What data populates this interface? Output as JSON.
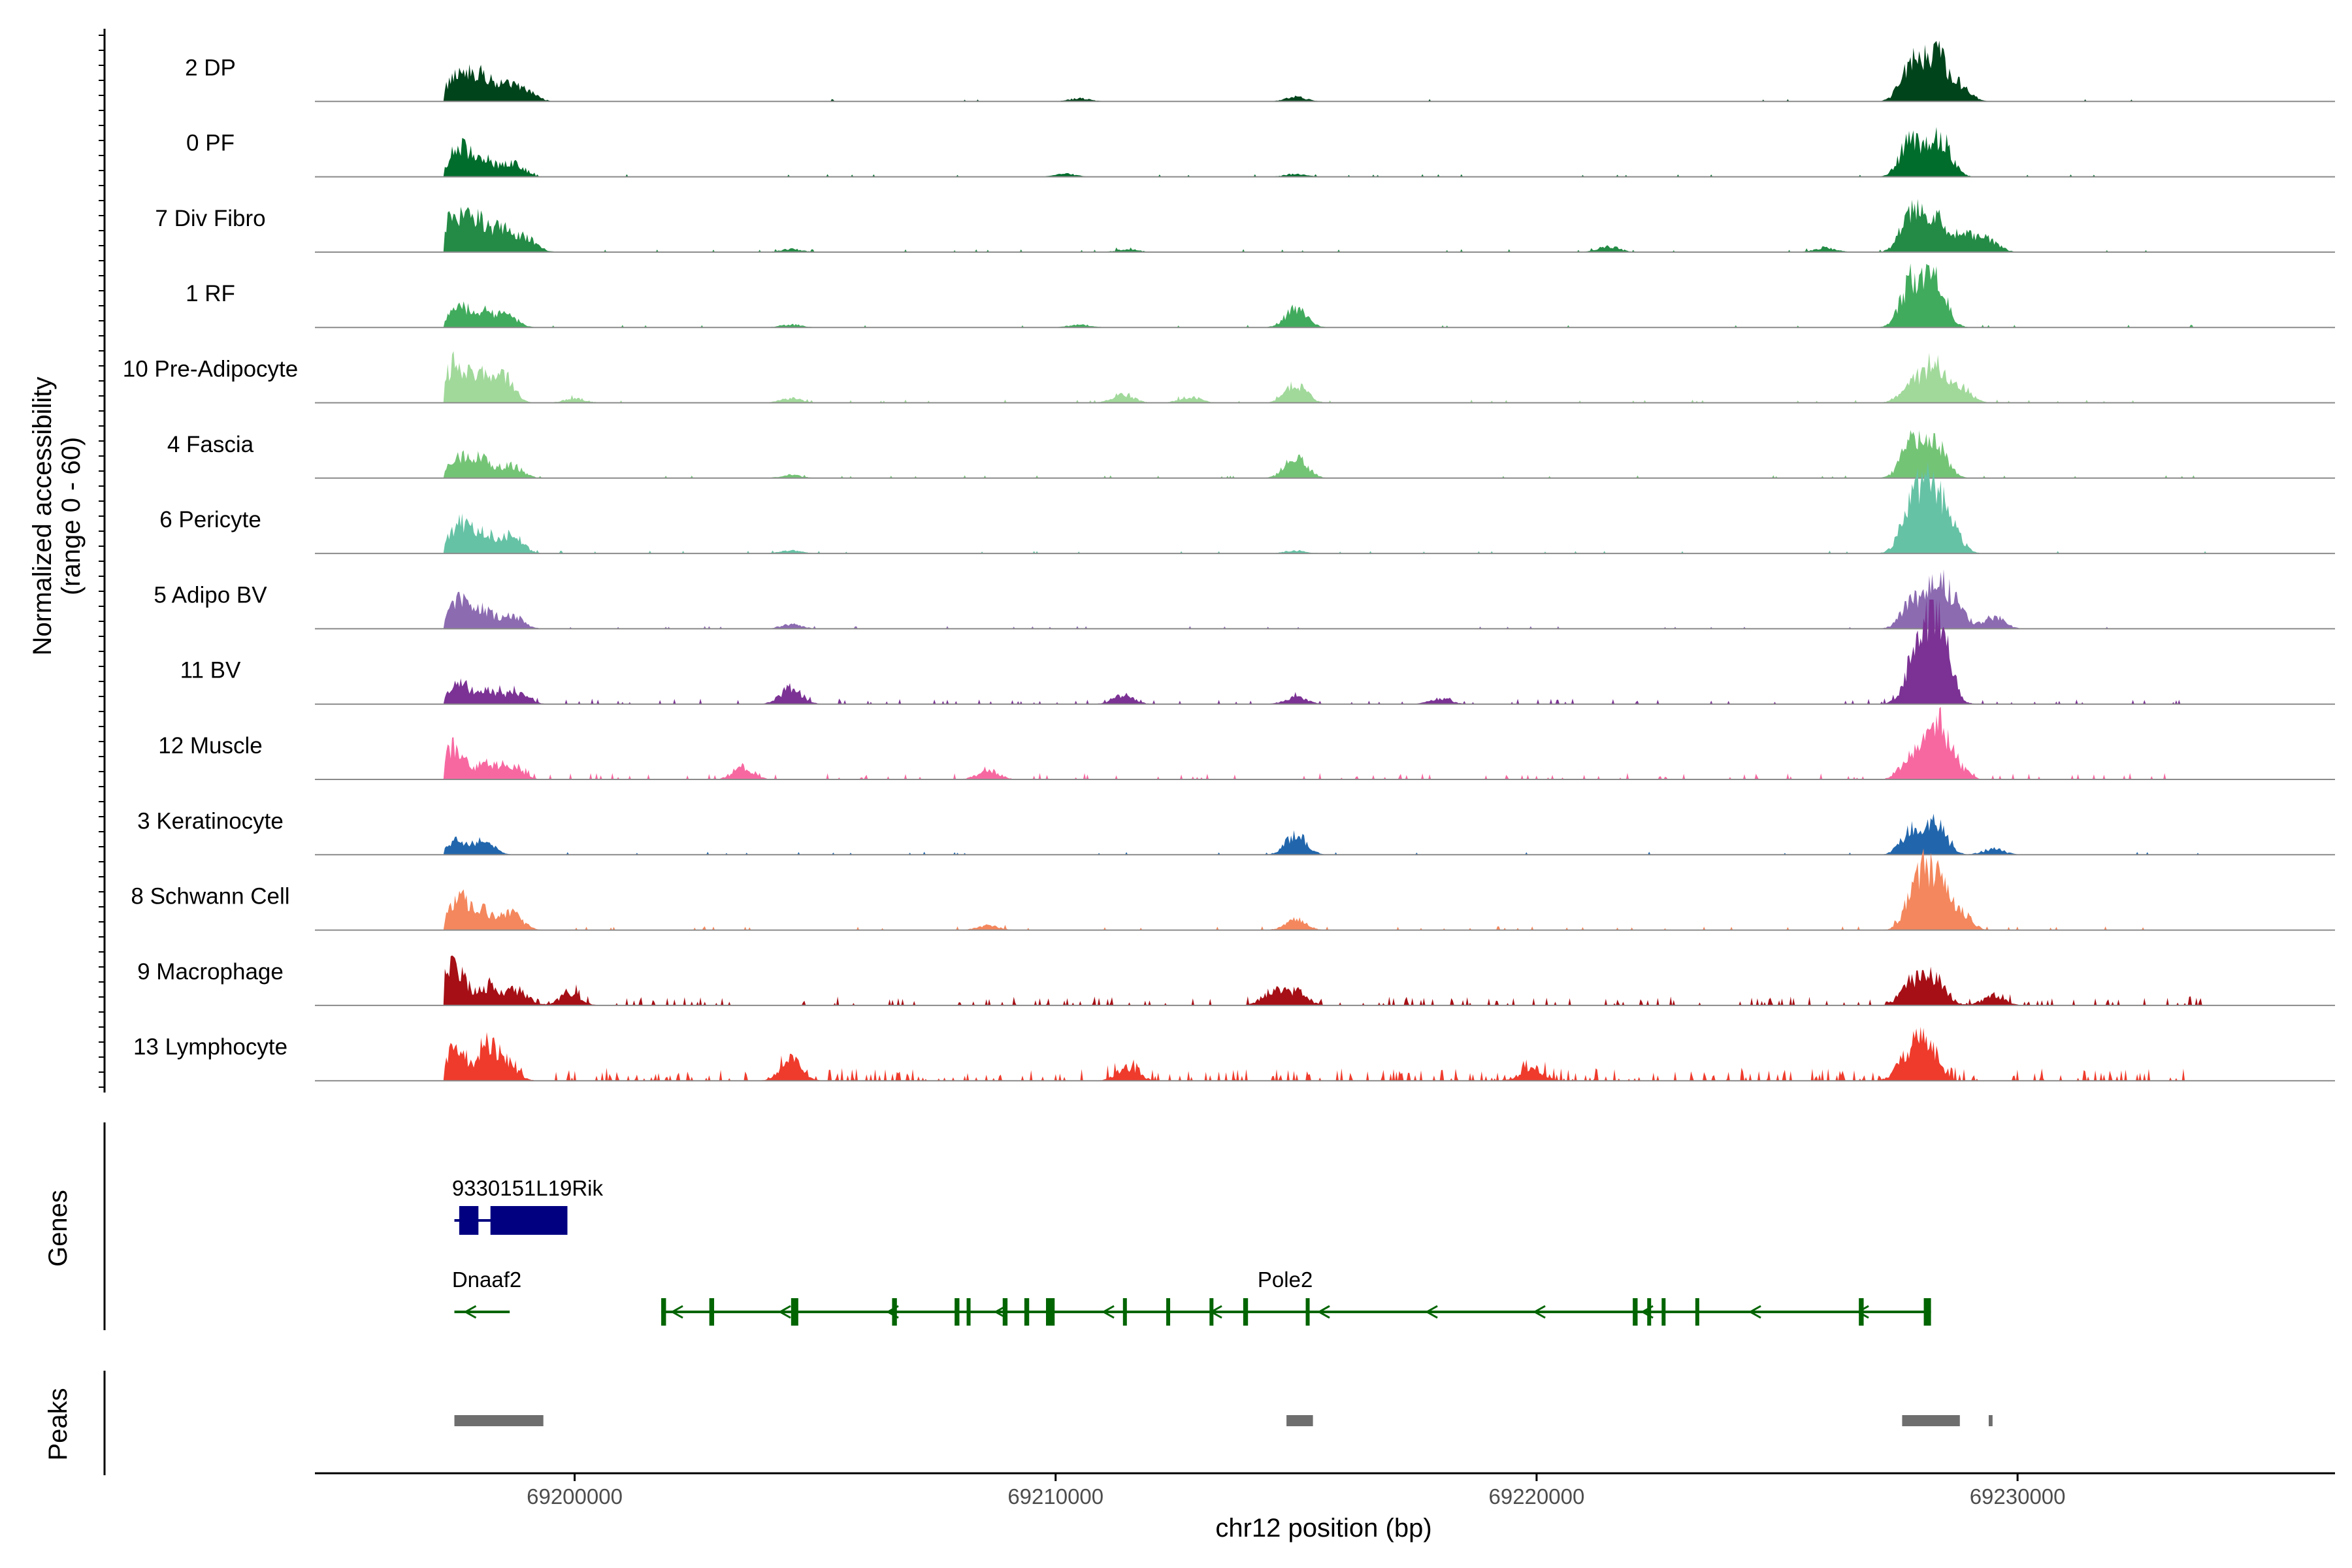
{
  "chart_data": {
    "type": "area",
    "title": "",
    "xlabel": "chr12 position (bp)",
    "ylabel_line1": "Normalized accessibility",
    "ylabel_line2": "(range 0 - 60)",
    "y_range": [
      0,
      60
    ],
    "x_range": [
      69194600,
      69236600
    ],
    "x_ticks": [
      69200000,
      69210000,
      69220000,
      69230000
    ],
    "x_tick_labels": [
      "69200000",
      "69210000",
      "69220000",
      "69230000"
    ],
    "tracks": [
      {
        "name": "2 DP",
        "color": "#00441b",
        "noise": 0.04,
        "peaks": [
          [
            69197600,
            21
          ],
          [
            69198100,
            16
          ],
          [
            69198600,
            9
          ],
          [
            69199000,
            6
          ],
          [
            69227800,
            26
          ],
          [
            69228300,
            30
          ],
          [
            69228800,
            10
          ],
          [
            69215000,
            3
          ],
          [
            69210500,
            2
          ]
        ]
      },
      {
        "name": "0 PF",
        "color": "#006d2c",
        "noise": 0.05,
        "peaks": [
          [
            69197600,
            19
          ],
          [
            69198100,
            12
          ],
          [
            69198700,
            9
          ],
          [
            69227800,
            27
          ],
          [
            69228400,
            25
          ],
          [
            69210200,
            2
          ],
          [
            69215000,
            2
          ]
        ]
      },
      {
        "name": "7 Div Fibro",
        "color": "#238b45",
        "noise": 0.07,
        "peaks": [
          [
            69197500,
            24
          ],
          [
            69198000,
            20
          ],
          [
            69198500,
            14
          ],
          [
            69199000,
            9
          ],
          [
            69227800,
            26
          ],
          [
            69228300,
            21
          ],
          [
            69228900,
            12
          ],
          [
            69229400,
            8
          ],
          [
            69204500,
            2
          ],
          [
            69211500,
            2
          ],
          [
            69221500,
            4
          ],
          [
            69226000,
            3
          ]
        ]
      },
      {
        "name": "1 RF",
        "color": "#41ab5d",
        "noise": 0.06,
        "peaks": [
          [
            69197600,
            13
          ],
          [
            69198100,
            10
          ],
          [
            69198600,
            8
          ],
          [
            69227800,
            31
          ],
          [
            69228300,
            30
          ],
          [
            69215000,
            13
          ],
          [
            69210500,
            2
          ],
          [
            69204500,
            2
          ]
        ]
      },
      {
        "name": "10 Pre-Adipocyte",
        "color": "#a1d99b",
        "noise": 0.1,
        "peaks": [
          [
            69197500,
            25
          ],
          [
            69198000,
            16
          ],
          [
            69198500,
            18
          ],
          [
            69227800,
            14
          ],
          [
            69228300,
            26
          ],
          [
            69228800,
            11
          ],
          [
            69215000,
            12
          ],
          [
            69211400,
            6
          ],
          [
            69200000,
            3
          ],
          [
            69204500,
            3
          ],
          [
            69212800,
            4
          ]
        ]
      },
      {
        "name": "4 Fascia",
        "color": "#74c476",
        "noise": 0.06,
        "peaks": [
          [
            69197600,
            14
          ],
          [
            69198100,
            12
          ],
          [
            69198700,
            8
          ],
          [
            69227800,
            23
          ],
          [
            69228300,
            24
          ],
          [
            69215000,
            15
          ],
          [
            69204500,
            2
          ]
        ]
      },
      {
        "name": "6 Pericyte",
        "color": "#66c2a5",
        "noise": 0.06,
        "peaks": [
          [
            69197600,
            20
          ],
          [
            69198100,
            14
          ],
          [
            69198700,
            12
          ],
          [
            69227800,
            30
          ],
          [
            69228200,
            41
          ],
          [
            69228600,
            18
          ],
          [
            69204500,
            2
          ],
          [
            69215000,
            2
          ]
        ]
      },
      {
        "name": "5 Adipo BV",
        "color": "#8c6bb1",
        "noise": 0.06,
        "peaks": [
          [
            69197600,
            19
          ],
          [
            69198100,
            12
          ],
          [
            69198700,
            9
          ],
          [
            69227800,
            17
          ],
          [
            69228300,
            28
          ],
          [
            69228700,
            15
          ],
          [
            69229500,
            8
          ],
          [
            69204500,
            3
          ]
        ]
      },
      {
        "name": "11 BV",
        "color": "#7b3294",
        "noise": 0.22,
        "peaks": [
          [
            69197600,
            14
          ],
          [
            69198200,
            9
          ],
          [
            69198800,
            8
          ],
          [
            69204500,
            11
          ],
          [
            69227800,
            14
          ],
          [
            69228100,
            40
          ],
          [
            69228400,
            39
          ],
          [
            69215000,
            5
          ],
          [
            69211400,
            6
          ],
          [
            69218000,
            4
          ]
        ]
      },
      {
        "name": "12 Muscle",
        "color": "#f768a1",
        "noise": 0.28,
        "peaks": [
          [
            69197500,
            22
          ],
          [
            69198200,
            10
          ],
          [
            69198700,
            8
          ],
          [
            69227800,
            15
          ],
          [
            69228300,
            35
          ],
          [
            69228700,
            10
          ],
          [
            69203500,
            7
          ],
          [
            69208600,
            6
          ]
        ]
      },
      {
        "name": "3 Keratinocyte",
        "color": "#2166ac",
        "noise": 0.08,
        "peaks": [
          [
            69197500,
            9
          ],
          [
            69198100,
            9
          ],
          [
            69227800,
            16
          ],
          [
            69228300,
            20
          ],
          [
            69215000,
            13
          ],
          [
            69229500,
            4
          ]
        ]
      },
      {
        "name": "8 Schwann Cell",
        "color": "#f4875d",
        "noise": 0.12,
        "peaks": [
          [
            69197600,
            20
          ],
          [
            69198100,
            12
          ],
          [
            69198700,
            11
          ],
          [
            69227900,
            30
          ],
          [
            69228300,
            34
          ],
          [
            69228800,
            12
          ],
          [
            69215000,
            7
          ],
          [
            69208600,
            3
          ]
        ]
      },
      {
        "name": "9 Macrophage",
        "color": "#a50f15",
        "noise": 0.42,
        "peaks": [
          [
            69197500,
            28
          ],
          [
            69198200,
            12
          ],
          [
            69198800,
            10
          ],
          [
            69199900,
            8
          ],
          [
            69214500,
            9
          ],
          [
            69215000,
            9
          ],
          [
            69227800,
            16
          ],
          [
            69228300,
            18
          ],
          [
            69229500,
            7
          ]
        ]
      },
      {
        "name": "13 Lymphocyte",
        "color": "#ef3b2c",
        "noise": 0.65,
        "peaks": [
          [
            69197500,
            22
          ],
          [
            69198200,
            20
          ],
          [
            69198600,
            10
          ],
          [
            69204500,
            14
          ],
          [
            69228100,
            28
          ],
          [
            69227700,
            14
          ],
          [
            69219900,
            9
          ],
          [
            69211500,
            9
          ]
        ]
      }
    ],
    "genes": [
      {
        "name": "9330151L19Rik",
        "start": 69197500,
        "end": 69199850,
        "strand": "+",
        "color": "#000080",
        "row": 0,
        "label_pos": 69197450,
        "exons": [
          [
            69197600,
            69198000
          ],
          [
            69198250,
            69199850
          ]
        ]
      },
      {
        "name": "Dnaaf2",
        "start": 69197500,
        "end": 69198650,
        "strand": "-",
        "color": "#006400",
        "row": 1,
        "label_pos": 69197450,
        "exons": []
      },
      {
        "name": "Pole2",
        "start": 69201800,
        "end": 69228200,
        "strand": "-",
        "color": "#006400",
        "row": 1,
        "label_pos": 69214200,
        "exons": [
          [
            69201800,
            69201900
          ],
          [
            69202800,
            69202900
          ],
          [
            69204500,
            69204650
          ],
          [
            69206600,
            69206700
          ],
          [
            69207900,
            69208000
          ],
          [
            69208150,
            69208230
          ],
          [
            69208900,
            69209000
          ],
          [
            69209350,
            69209450
          ],
          [
            69209800,
            69209980
          ],
          [
            69211400,
            69211480
          ],
          [
            69212300,
            69212350
          ],
          [
            69213200,
            69213280
          ],
          [
            69213900,
            69214000
          ],
          [
            69215200,
            69215280
          ],
          [
            69222000,
            69222100
          ],
          [
            69222300,
            69222380
          ],
          [
            69222600,
            69222680
          ],
          [
            69223300,
            69223380
          ],
          [
            69226700,
            69226800
          ],
          [
            69228050,
            69228200
          ]
        ]
      }
    ],
    "peak_regions": [
      [
        69197500,
        69199350
      ],
      [
        69214800,
        69215350
      ],
      [
        69227600,
        69228800
      ],
      [
        69229400,
        69229480
      ]
    ],
    "gene_panel_label": "Genes",
    "peak_panel_label": "Peaks"
  }
}
